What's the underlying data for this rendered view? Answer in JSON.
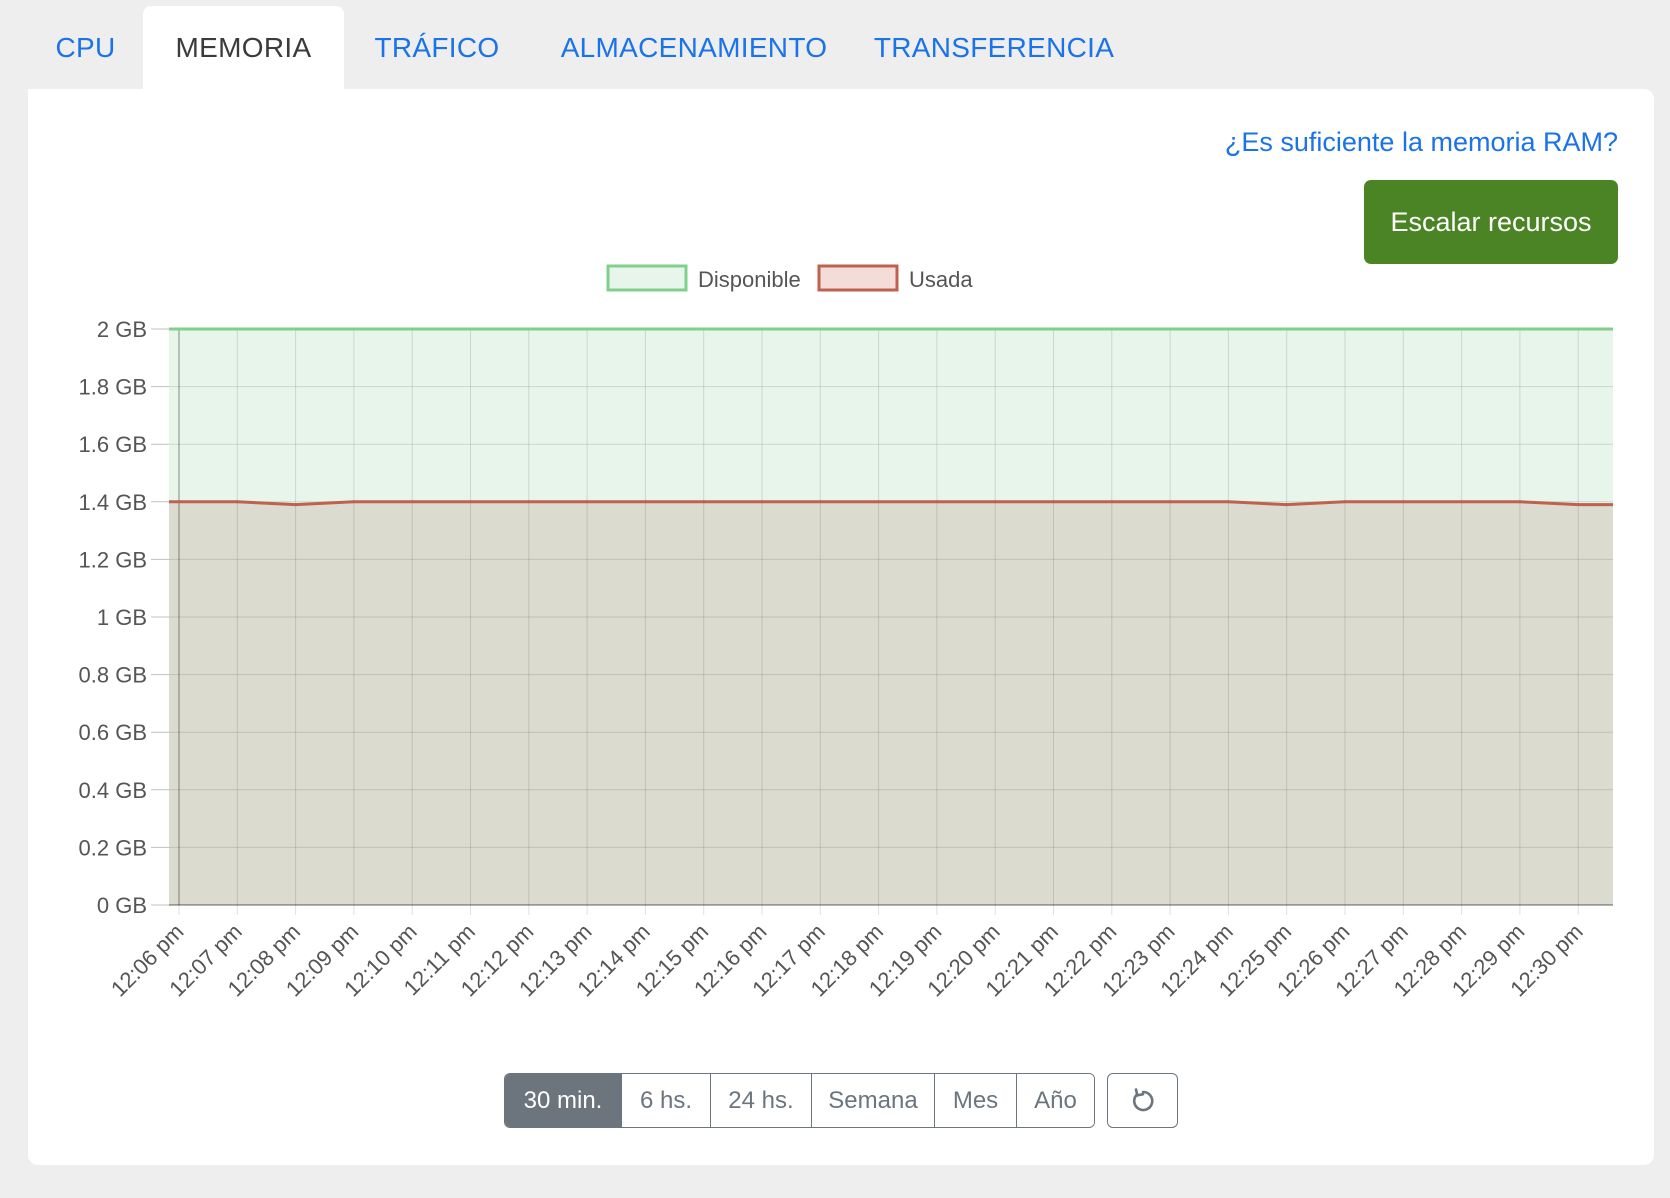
{
  "tabs": [
    {
      "label": "CPU",
      "active": false
    },
    {
      "label": "MEMORIA",
      "active": true
    },
    {
      "label": "TRÁFICO",
      "active": false
    },
    {
      "label": "ALMACENAMIENTO",
      "active": false
    },
    {
      "label": "TRANSFERENCIA",
      "active": false
    }
  ],
  "help_link": "¿Es suficiente la memoria RAM?",
  "scale_button": "Escalar recursos",
  "range_buttons": [
    {
      "label": "30 min.",
      "active": true
    },
    {
      "label": "6 hs.",
      "active": false
    },
    {
      "label": "24 hs.",
      "active": false
    },
    {
      "label": "Semana",
      "active": false
    },
    {
      "label": "Mes",
      "active": false
    },
    {
      "label": "Año",
      "active": false
    }
  ],
  "refresh_icon": "refresh-icon",
  "colors": {
    "link": "#1a73e8",
    "scale_button": "#4a8424",
    "available_line": "#7fd08a",
    "available_fill": "#e8f5ea",
    "used_line": "#c0604f",
    "used_fill": "#dcdbcf"
  },
  "chart_data": {
    "type": "area",
    "legend_position": "top-center",
    "grid": true,
    "ylim": [
      0,
      2
    ],
    "y_ticks": [
      "0 GB",
      "0.2 GB",
      "0.4 GB",
      "0.6 GB",
      "0.8 GB",
      "1 GB",
      "1.2 GB",
      "1.4 GB",
      "1.6 GB",
      "1.8 GB",
      "2 GB"
    ],
    "x": [
      "12:06 pm",
      "12:07 pm",
      "12:08 pm",
      "12:09 pm",
      "12:10 pm",
      "12:11 pm",
      "12:12 pm",
      "12:13 pm",
      "12:14 pm",
      "12:15 pm",
      "12:16 pm",
      "12:17 pm",
      "12:18 pm",
      "12:19 pm",
      "12:20 pm",
      "12:21 pm",
      "12:22 pm",
      "12:23 pm",
      "12:24 pm",
      "12:25 pm",
      "12:26 pm",
      "12:27 pm",
      "12:28 pm",
      "12:29 pm",
      "12:30 pm"
    ],
    "series": [
      {
        "name": "Disponible",
        "values": [
          2,
          2,
          2,
          2,
          2,
          2,
          2,
          2,
          2,
          2,
          2,
          2,
          2,
          2,
          2,
          2,
          2,
          2,
          2,
          2,
          2,
          2,
          2,
          2,
          2
        ]
      },
      {
        "name": "Usada",
        "values": [
          1.4,
          1.4,
          1.39,
          1.4,
          1.4,
          1.4,
          1.4,
          1.4,
          1.4,
          1.4,
          1.4,
          1.4,
          1.4,
          1.4,
          1.4,
          1.4,
          1.4,
          1.4,
          1.4,
          1.39,
          1.4,
          1.4,
          1.4,
          1.4,
          1.39
        ]
      }
    ]
  }
}
